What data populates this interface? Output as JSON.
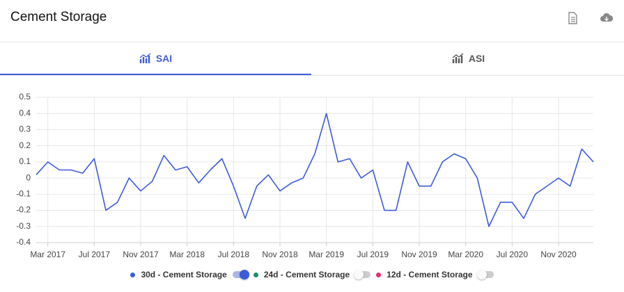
{
  "header": {
    "title": "Cement Storage"
  },
  "tabs": [
    {
      "label": "SAI",
      "active": true
    },
    {
      "label": "ASI",
      "active": false
    }
  ],
  "chart_data": {
    "type": "line",
    "x": [
      "2017-02",
      "2017-03",
      "2017-04",
      "2017-05",
      "2017-06",
      "2017-07",
      "2017-08",
      "2017-09",
      "2017-10",
      "2017-11",
      "2017-12",
      "2018-01",
      "2018-02",
      "2018-03",
      "2018-04",
      "2018-05",
      "2018-06",
      "2018-07",
      "2018-08",
      "2018-09",
      "2018-10",
      "2018-11",
      "2018-12",
      "2019-01",
      "2019-02",
      "2019-03",
      "2019-04",
      "2019-05",
      "2019-06",
      "2019-07",
      "2019-08",
      "2019-09",
      "2019-10",
      "2019-11",
      "2019-12",
      "2020-01",
      "2020-02",
      "2020-03",
      "2020-04",
      "2020-05",
      "2020-06",
      "2020-07",
      "2020-08",
      "2020-09",
      "2020-10",
      "2020-11",
      "2020-12",
      "2021-01",
      "2021-02"
    ],
    "series": [
      {
        "name": "30d - Cement Storage",
        "color": "#3d5bd9",
        "visible": true,
        "values": [
          0.02,
          0.1,
          0.05,
          0.05,
          0.03,
          0.12,
          -0.2,
          -0.15,
          0.0,
          -0.08,
          -0.02,
          0.14,
          0.05,
          0.07,
          -0.03,
          0.05,
          0.12,
          -0.05,
          -0.25,
          -0.05,
          0.02,
          -0.08,
          -0.03,
          0.0,
          0.15,
          0.4,
          0.1,
          0.12,
          0.0,
          0.05,
          -0.2,
          -0.2,
          0.1,
          -0.05,
          -0.05,
          0.1,
          0.15,
          0.12,
          0.0,
          -0.3,
          -0.15,
          -0.15,
          -0.25,
          -0.1,
          -0.05,
          0.0,
          -0.05,
          0.18,
          0.1
        ]
      },
      {
        "name": "24d - Cement Storage",
        "color": "#1d8a6e",
        "visible": false
      },
      {
        "name": "12d - Cement Storage",
        "color": "#e0306a",
        "visible": false
      }
    ],
    "xlim": [
      "2017-02",
      "2021-02"
    ],
    "xticks": [
      {
        "value": "2017-03",
        "label": "Mar 2017"
      },
      {
        "value": "2017-07",
        "label": "Jul 2017"
      },
      {
        "value": "2017-11",
        "label": "Nov 2017"
      },
      {
        "value": "2018-03",
        "label": "Mar 2018"
      },
      {
        "value": "2018-07",
        "label": "Jul 2018"
      },
      {
        "value": "2018-11",
        "label": "Nov 2018"
      },
      {
        "value": "2019-03",
        "label": "Mar 2019"
      },
      {
        "value": "2019-07",
        "label": "Jul 2019"
      },
      {
        "value": "2019-11",
        "label": "Nov 2019"
      },
      {
        "value": "2020-03",
        "label": "Mar 2020"
      },
      {
        "value": "2020-07",
        "label": "Jul 2020"
      },
      {
        "value": "2020-11",
        "label": "Nov 2020"
      }
    ],
    "ylim": [
      -0.4,
      0.5
    ],
    "yticks": [
      -0.4,
      -0.3,
      -0.2,
      -0.1,
      0,
      0.1,
      0.2,
      0.3,
      0.4,
      0.5
    ],
    "grid": true
  }
}
